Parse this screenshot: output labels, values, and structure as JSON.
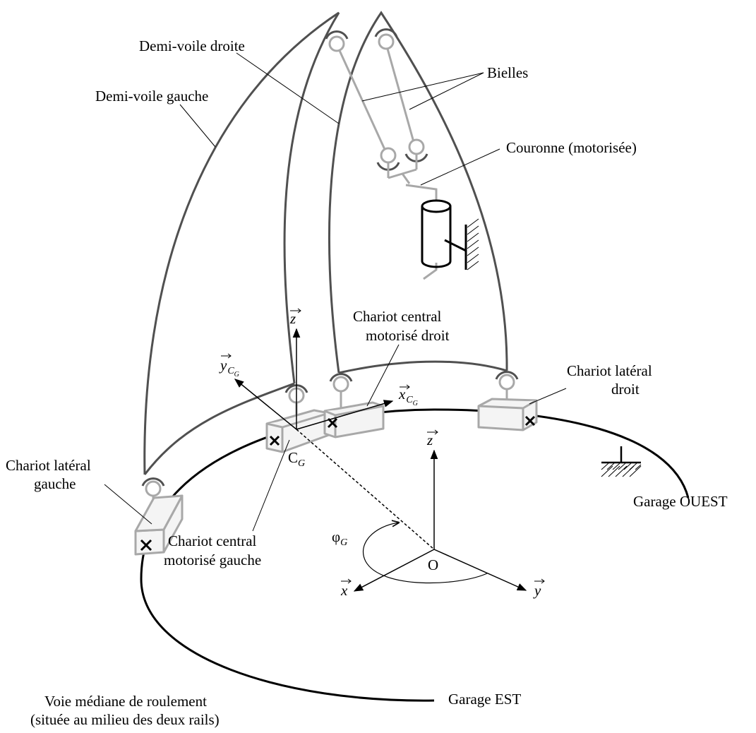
{
  "labels": {
    "demi_voile_droite": "Demi-voile droite",
    "demi_voile_gauche": "Demi-voile gauche",
    "bielles": "Bielles",
    "couronne": "Couronne (motorisée)",
    "chariot_central_droit_line1": "Chariot central",
    "chariot_central_droit_line2": "motorisé droit",
    "chariot_lateral_droit_line1": "Chariot latéral",
    "chariot_lateral_droit_line2": "droit",
    "chariot_lateral_gauche_line1": "Chariot latéral",
    "chariot_lateral_gauche_line2": "gauche",
    "chariot_central_gauche_line1": "Chariot central",
    "chariot_central_gauche_line2": "motorisé gauche",
    "garage_ouest": "Garage OUEST",
    "garage_est": "Garage EST",
    "voie_line1": "Voie médiane de roulement",
    "voie_line2": "(située au milieu des deux rails)"
  },
  "symbols": {
    "z_local": "z",
    "y_cg": "y",
    "y_cg_sub": "C",
    "y_cg_subsub": "G",
    "x_cg": "x",
    "x_cg_sub": "C",
    "x_cg_subsub": "G",
    "point_cg": "C",
    "point_cg_sub": "G",
    "z_global": "z",
    "x_global": "x",
    "y_global": "y",
    "origin": "O",
    "phi": "φ",
    "phi_sub": "G"
  },
  "colors": {
    "sail_stroke": "#505050",
    "component_stroke": "#a8a8a8",
    "rail_stroke": "#000000"
  }
}
